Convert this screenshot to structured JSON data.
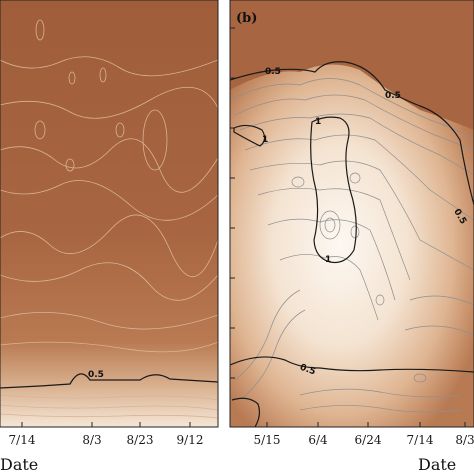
{
  "chart_data": [
    {
      "panel": "a",
      "type": "heatmap",
      "xlabel": "Date",
      "x_tick_labels": [
        "7/14",
        "8/3",
        "8/23",
        "9/12"
      ],
      "contour_labels": [
        "0.5"
      ],
      "colors": {
        "high": "#a4603c",
        "mid": "#c99066",
        "low": "#f6e8da",
        "contour": "#d9b79c",
        "key_contour": "#1a1a1a"
      }
    },
    {
      "panel": "b",
      "type": "heatmap",
      "panel_label": "(b)",
      "xlabel": "Date",
      "x_tick_labels": [
        "5/15",
        "6/4",
        "6/24",
        "7/14",
        "8/3"
      ],
      "contour_labels": [
        "0.5",
        "0.5",
        "0.5",
        "0.5",
        "1",
        "1",
        "1"
      ],
      "colors": {
        "high": "#a4603c",
        "mid": "#d8ac88",
        "low": "#fbf3ea",
        "contour": "#8f8f8f",
        "key_contour": "#1a1a1a"
      }
    }
  ]
}
